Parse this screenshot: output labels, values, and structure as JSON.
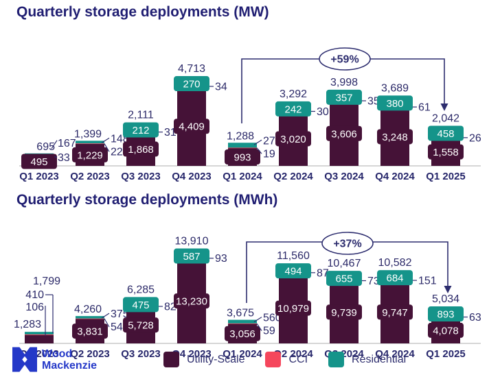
{
  "brand": {
    "name_line1": "Wood",
    "name_line2": "Mackenzie"
  },
  "colors": {
    "utility": "#451237",
    "cci": "#f5465c",
    "residential": "#15948a",
    "value_text": "#2b2968",
    "title_text": "#201e72",
    "axis_line": "#c9c9c9",
    "annotation": "#2c2c6e",
    "logo_blue": "#2438c8"
  },
  "legend": [
    {
      "label": "Utility-Scale",
      "color": "#451237"
    },
    {
      "label": "CCI",
      "color": "#f5465c"
    },
    {
      "label": "Residential",
      "color": "#15948a"
    }
  ],
  "chart_data": [
    {
      "type": "bar",
      "stacked": true,
      "title": "Quarterly storage deployments (MW)",
      "unit": "MW",
      "categories": [
        "Q1 2023",
        "Q2 2023",
        "Q3 2023",
        "Q4 2023",
        "Q1 2024",
        "Q2 2024",
        "Q3 2024",
        "Q4 2024",
        "Q1 2025"
      ],
      "series": [
        {
          "name": "Utility-Scale",
          "values": [
            495,
            1229,
            1868,
            4409,
            993,
            3020,
            3606,
            3248,
            1558
          ]
        },
        {
          "name": "CCI",
          "values": [
            33,
            22,
            31,
            34,
            19,
            30,
            35,
            61,
            26
          ]
        },
        {
          "name": "Residential",
          "values": [
            167,
            148,
            212,
            270,
            276,
            242,
            357,
            380,
            458
          ]
        }
      ],
      "totals": [
        695,
        1399,
        2111,
        4713,
        1288,
        3292,
        3998,
        3689,
        2042
      ],
      "annotation": {
        "label": "+59%",
        "from_category": "Q1 2024",
        "to_category": "Q1 2025"
      },
      "grid": false,
      "legend_position": "bottom"
    },
    {
      "type": "bar",
      "stacked": true,
      "title": "Quarterly storage deployments (MWh)",
      "unit": "MWh",
      "categories": [
        "Q1 2023",
        "Q2 2023",
        "Q3 2023",
        "Q4 2023",
        "Q1 2024",
        "Q2 2024",
        "Q3 2024",
        "Q4 2024",
        "Q1 2025"
      ],
      "series": [
        {
          "name": "Utility-Scale",
          "values": [
            1283,
            3831,
            5728,
            13230,
            3056,
            10979,
            9739,
            9747,
            4078
          ]
        },
        {
          "name": "CCI",
          "values": [
            106,
            54,
            82,
            93,
            59,
            87,
            73,
            151,
            63
          ]
        },
        {
          "name": "Residential",
          "values": [
            410,
            375,
            475,
            587,
            560,
            494,
            655,
            684,
            893
          ]
        }
      ],
      "totals": [
        1799,
        4260,
        6285,
        13910,
        3675,
        11560,
        10467,
        10582,
        5034
      ],
      "annotation": {
        "label": "+37%",
        "from_category": "Q1 2024",
        "to_category": "Q1 2025"
      },
      "grid": false,
      "legend_position": "bottom"
    }
  ]
}
